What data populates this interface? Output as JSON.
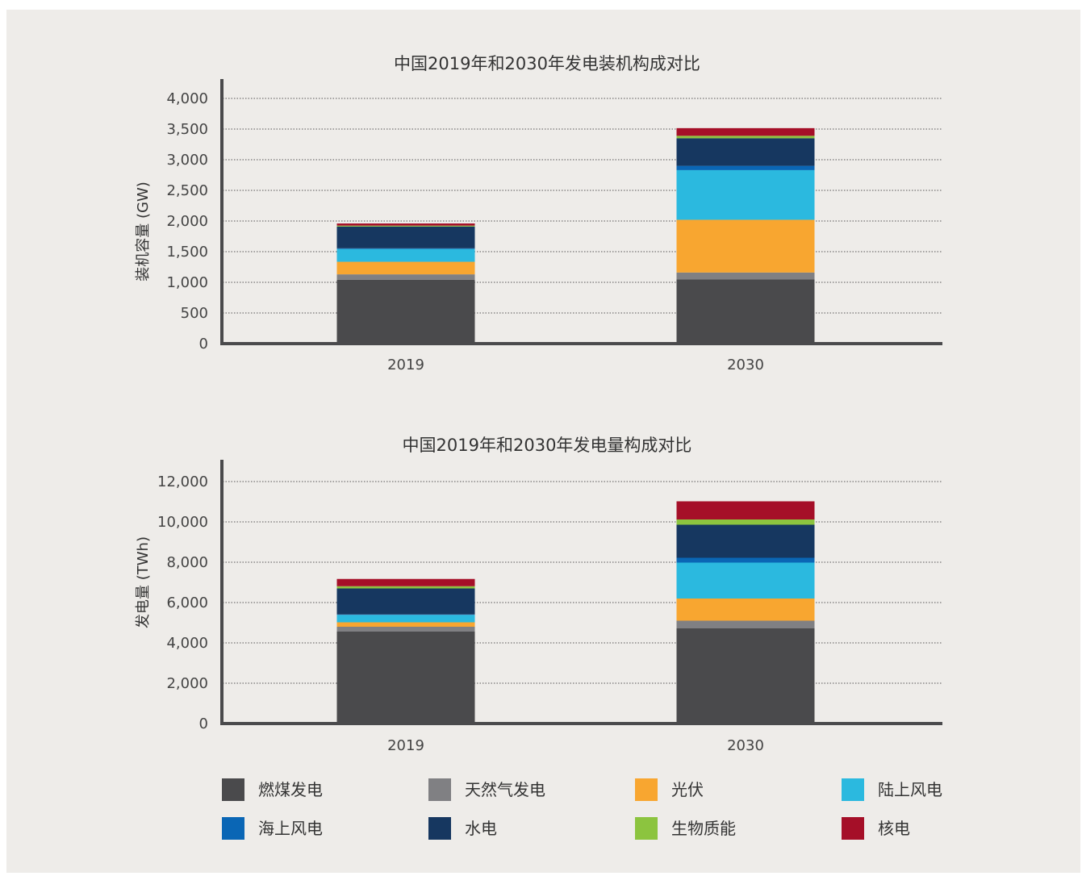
{
  "chart_data": [
    {
      "type": "bar",
      "stacked": true,
      "title": "中国2019年和2030年发电装机构成对比",
      "xlabel": "",
      "ylabel": "装机容量 (GW)",
      "categories": [
        "2019",
        "2030"
      ],
      "ylim": [
        0,
        4000
      ],
      "yticks": [
        0,
        500,
        1000,
        1500,
        2000,
        2500,
        3000,
        3500,
        4000
      ],
      "ytick_labels": [
        "0",
        "500",
        "1,000",
        "1,500",
        "2,000",
        "2,500",
        "3,000",
        "3,500",
        "4,000"
      ],
      "grid": true,
      "series": [
        {
          "name": "燃煤发电",
          "color": "#4a4a4c",
          "values": [
            1040,
            1050
          ]
        },
        {
          "name": "天然气发电",
          "color": "#808083",
          "values": [
            90,
            110
          ]
        },
        {
          "name": "光伏",
          "color": "#f8a630",
          "values": [
            205,
            860
          ]
        },
        {
          "name": "陆上风电",
          "color": "#2bb9df",
          "values": [
            210,
            810
          ]
        },
        {
          "name": "海上风电",
          "color": "#0a66b5",
          "values": [
            10,
            70
          ]
        },
        {
          "name": "水电",
          "color": "#163760",
          "values": [
            355,
            450
          ]
        },
        {
          "name": "生物质能",
          "color": "#8cc43f",
          "values": [
            15,
            40
          ]
        },
        {
          "name": "核电",
          "color": "#a50f28",
          "values": [
            35,
            125
          ]
        }
      ]
    },
    {
      "type": "bar",
      "stacked": true,
      "title": "中国2019年和2030年发电量构成对比",
      "xlabel": "",
      "ylabel": "发电量 (TWh)",
      "categories": [
        "2019",
        "2030"
      ],
      "ylim": [
        0,
        12000
      ],
      "yticks": [
        0,
        2000,
        4000,
        6000,
        8000,
        10000,
        12000
      ],
      "ytick_labels": [
        "0",
        "2,000",
        "4,000",
        "6,000",
        "8,000",
        "10,000",
        "12,000"
      ],
      "grid": true,
      "series": [
        {
          "name": "燃煤发电",
          "color": "#4a4a4c",
          "values": [
            4560,
            4720
          ]
        },
        {
          "name": "天然气发电",
          "color": "#808083",
          "values": [
            240,
            380
          ]
        },
        {
          "name": "光伏",
          "color": "#f8a630",
          "values": [
            220,
            1100
          ]
        },
        {
          "name": "陆上风电",
          "color": "#2bb9df",
          "values": [
            370,
            1780
          ]
        },
        {
          "name": "海上风电",
          "color": "#0a66b5",
          "values": [
            20,
            240
          ]
        },
        {
          "name": "水电",
          "color": "#163760",
          "values": [
            1290,
            1640
          ]
        },
        {
          "name": "生物质能",
          "color": "#8cc43f",
          "values": [
            110,
            260
          ]
        },
        {
          "name": "核电",
          "color": "#a50f28",
          "values": [
            360,
            900
          ]
        }
      ]
    }
  ],
  "legend": [
    {
      "label": "燃煤发电",
      "color": "#4a4a4c"
    },
    {
      "label": "天然气发电",
      "color": "#808083"
    },
    {
      "label": "光伏",
      "color": "#f8a630"
    },
    {
      "label": "陆上风电",
      "color": "#2bb9df"
    },
    {
      "label": "海上风电",
      "color": "#0a66b5"
    },
    {
      "label": "水电",
      "color": "#163760"
    },
    {
      "label": "生物质能",
      "color": "#8cc43f"
    },
    {
      "label": "核电",
      "color": "#a50f28"
    }
  ]
}
